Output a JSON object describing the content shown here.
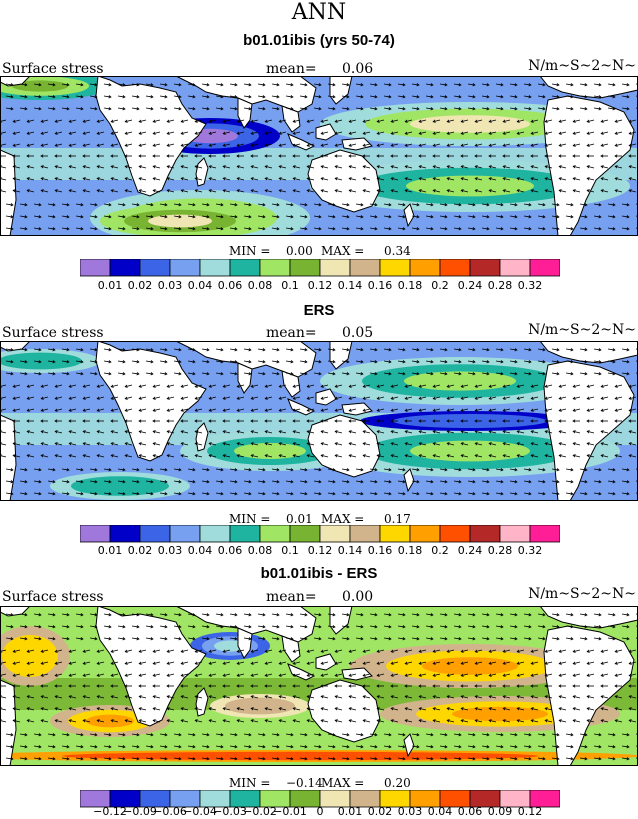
{
  "title": "ANN",
  "colorbar": {
    "colors": [
      "#a078dc",
      "#0000c8",
      "#3c64e6",
      "#78a0f0",
      "#a0dcdc",
      "#1eb4a0",
      "#a0e664",
      "#78b432",
      "#f0e6b4",
      "#d2b48c",
      "#ffd700",
      "#ffa000",
      "#ff5000",
      "#b42828",
      "#ffb4c8",
      "#ff1e96"
    ],
    "abs_labels": [
      "0.01",
      "0.02",
      "0.03",
      "0.04",
      "0.06",
      "0.08",
      "0.1",
      "0.12",
      "0.14",
      "0.16",
      "0.18",
      "0.2",
      "0.24",
      "0.28",
      "0.32"
    ],
    "diff_labels": [
      "−0.12",
      "−0.09",
      "−0.06",
      "−0.04",
      "−0.03",
      "−0.02",
      "−0.01",
      "0",
      "0.01",
      "0.02",
      "0.03",
      "0.04",
      "0.06",
      "0.09",
      "0.12"
    ]
  },
  "panels": [
    {
      "title": "b01.01ibis (yrs 50-74)",
      "left_label": "Surface stress",
      "mean_label": "mean=",
      "mean_value": "0.06",
      "units": "N/m~S~2~N~",
      "min_label": "MIN =",
      "min_value": "0.00",
      "max_label": "MAX =",
      "max_value": "0.34",
      "tick_set": "abs"
    },
    {
      "title": "ERS",
      "left_label": "Surface stress",
      "mean_label": "mean=",
      "mean_value": "0.05",
      "units": "N/m~S~2~N~",
      "min_label": "MIN =",
      "min_value": "0.01",
      "max_label": "MAX =",
      "max_value": "0.17",
      "tick_set": "abs"
    },
    {
      "title": "b01.01ibis - ERS",
      "left_label": "Surface stress",
      "mean_label": "mean=",
      "mean_value": "0.00",
      "units": "N/m~S~2~N~",
      "min_label": "MIN =",
      "min_value": "−0.14",
      "max_label": "MAX =",
      "max_value": "0.20",
      "tick_set": "diff"
    }
  ]
}
